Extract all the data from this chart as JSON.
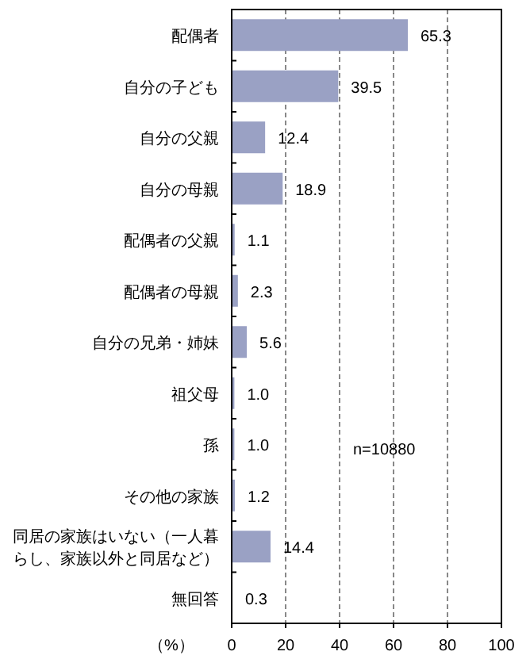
{
  "chart_data": {
    "type": "bar",
    "orientation": "horizontal",
    "categories": [
      "配偶者",
      "自分の子ども",
      "自分の父親",
      "自分の母親",
      "配偶者の父親",
      "配偶者の母親",
      "自分の兄弟・姉妹",
      "祖父母",
      "孫",
      "その他の家族",
      "同居の家族はいない（一人暮らし、家族以外と同居など）",
      "無回答"
    ],
    "values": [
      65.3,
      39.5,
      12.4,
      18.9,
      1.1,
      2.3,
      5.6,
      1.0,
      1.0,
      1.2,
      14.4,
      0.3
    ],
    "value_labels": [
      "65.3",
      "39.5",
      "12.4",
      "18.9",
      "1.1",
      "2.3",
      "5.6",
      "1.0",
      "1.0",
      "1.2",
      "14.4",
      "0.3"
    ],
    "color": "#9aa1c4",
    "xlim": [
      0,
      100
    ],
    "xticks": [
      0,
      20,
      40,
      60,
      80,
      100
    ],
    "xlabel": "（%）",
    "annotations": [
      "n=10880"
    ],
    "grid": "x"
  }
}
